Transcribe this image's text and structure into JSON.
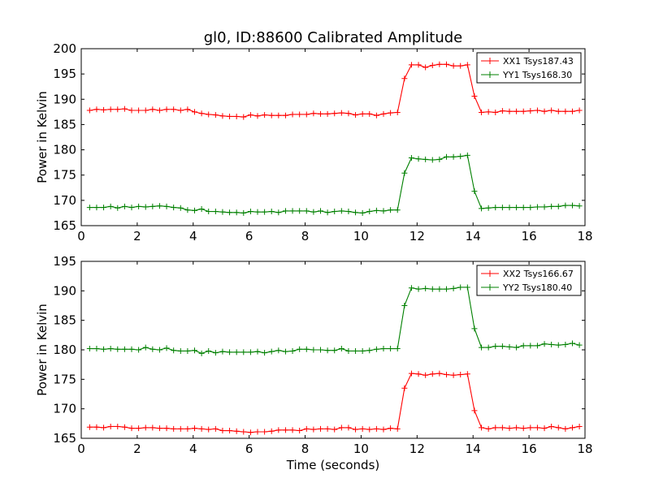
{
  "chart_data": [
    {
      "type": "line",
      "title": "gl0, ID:88600 Calibrated Amplitude",
      "xlabel": "",
      "ylabel": "Power in Kelvin",
      "xlim": [
        0,
        18
      ],
      "ylim": [
        165,
        200
      ],
      "xticks": [
        "0",
        "2",
        "4",
        "6",
        "8",
        "10",
        "12",
        "14",
        "16",
        "18"
      ],
      "yticks": [
        "165",
        "170",
        "175",
        "180",
        "185",
        "190",
        "195",
        "200"
      ],
      "legend_position": "top-right",
      "grid": false,
      "series": [
        {
          "name": "XX1 Tsys187.43",
          "color": "#ff0000",
          "marker": "+",
          "x": [
            0.3,
            0.55,
            0.8,
            1.05,
            1.3,
            1.55,
            1.8,
            2.05,
            2.3,
            2.55,
            2.8,
            3.05,
            3.3,
            3.55,
            3.8,
            4.05,
            4.3,
            4.55,
            4.8,
            5.05,
            5.3,
            5.55,
            5.8,
            6.05,
            6.3,
            6.55,
            6.8,
            7.05,
            7.3,
            7.55,
            7.8,
            8.05,
            8.3,
            8.55,
            8.8,
            9.05,
            9.3,
            9.55,
            9.8,
            10.05,
            10.3,
            10.55,
            10.8,
            11.05,
            11.3,
            11.55,
            11.8,
            12.05,
            12.3,
            12.55,
            12.8,
            13.05,
            13.3,
            13.55,
            13.8,
            14.05,
            14.3,
            14.55,
            14.8,
            15.05,
            15.3,
            15.55,
            15.8,
            16.05,
            16.3,
            16.55,
            16.8,
            17.05,
            17.3,
            17.55,
            17.8
          ],
          "y": [
            187.8,
            188.0,
            187.9,
            188.0,
            188.0,
            188.1,
            187.8,
            187.8,
            187.8,
            188.0,
            187.8,
            188.0,
            188.0,
            187.8,
            188.0,
            187.5,
            187.2,
            187.0,
            186.9,
            186.7,
            186.6,
            186.6,
            186.5,
            186.9,
            186.7,
            186.9,
            186.8,
            186.8,
            186.8,
            187.0,
            187.0,
            187.0,
            187.2,
            187.1,
            187.1,
            187.2,
            187.3,
            187.2,
            186.9,
            187.1,
            187.1,
            186.8,
            187.1,
            187.3,
            187.4,
            194.1,
            196.8,
            196.8,
            196.3,
            196.7,
            196.9,
            196.9,
            196.6,
            196.6,
            196.8,
            190.6,
            187.4,
            187.5,
            187.4,
            187.7,
            187.6,
            187.6,
            187.6,
            187.7,
            187.8,
            187.6,
            187.8,
            187.6,
            187.6,
            187.6,
            187.8
          ]
        },
        {
          "name": "YY1 Tsys168.30",
          "color": "#008000",
          "marker": "+",
          "x": [
            0.3,
            0.55,
            0.8,
            1.05,
            1.3,
            1.55,
            1.8,
            2.05,
            2.3,
            2.55,
            2.8,
            3.05,
            3.3,
            3.55,
            3.8,
            4.05,
            4.3,
            4.55,
            4.8,
            5.05,
            5.3,
            5.55,
            5.8,
            6.05,
            6.3,
            6.55,
            6.8,
            7.05,
            7.3,
            7.55,
            7.8,
            8.05,
            8.3,
            8.55,
            8.8,
            9.05,
            9.3,
            9.55,
            9.8,
            10.05,
            10.3,
            10.55,
            10.8,
            11.05,
            11.3,
            11.55,
            11.8,
            12.05,
            12.3,
            12.55,
            12.8,
            13.05,
            13.3,
            13.55,
            13.8,
            14.05,
            14.3,
            14.55,
            14.8,
            15.05,
            15.3,
            15.55,
            15.8,
            16.05,
            16.3,
            16.55,
            16.8,
            17.05,
            17.3,
            17.55,
            17.8
          ],
          "y": [
            168.6,
            168.6,
            168.6,
            168.8,
            168.5,
            168.8,
            168.6,
            168.8,
            168.7,
            168.8,
            168.9,
            168.8,
            168.6,
            168.5,
            168.1,
            168.0,
            168.3,
            167.8,
            167.8,
            167.7,
            167.6,
            167.6,
            167.5,
            167.8,
            167.7,
            167.7,
            167.8,
            167.6,
            167.9,
            167.9,
            167.9,
            167.9,
            167.7,
            167.9,
            167.6,
            167.8,
            167.9,
            167.8,
            167.6,
            167.5,
            167.8,
            168.0,
            167.9,
            168.1,
            168.1,
            175.4,
            178.4,
            178.2,
            178.1,
            178.0,
            178.1,
            178.6,
            178.6,
            178.7,
            178.9,
            171.8,
            168.4,
            168.5,
            168.6,
            168.6,
            168.6,
            168.6,
            168.6,
            168.6,
            168.7,
            168.7,
            168.8,
            168.8,
            169.0,
            169.0,
            168.9
          ]
        }
      ]
    },
    {
      "type": "line",
      "title": "",
      "xlabel": "Time (seconds)",
      "ylabel": "Power in Kelvin",
      "xlim": [
        0,
        18
      ],
      "ylim": [
        165,
        195
      ],
      "xticks": [
        "0",
        "2",
        "4",
        "6",
        "8",
        "10",
        "12",
        "14",
        "16",
        "18"
      ],
      "yticks": [
        "165",
        "170",
        "175",
        "180",
        "185",
        "190",
        "195"
      ],
      "legend_position": "top-right",
      "grid": false,
      "series": [
        {
          "name": "XX2 Tsys166.67",
          "color": "#ff0000",
          "marker": "+",
          "x": [
            0.3,
            0.55,
            0.8,
            1.05,
            1.3,
            1.55,
            1.8,
            2.05,
            2.3,
            2.55,
            2.8,
            3.05,
            3.3,
            3.55,
            3.8,
            4.05,
            4.3,
            4.55,
            4.8,
            5.05,
            5.3,
            5.55,
            5.8,
            6.05,
            6.3,
            6.55,
            6.8,
            7.05,
            7.3,
            7.55,
            7.8,
            8.05,
            8.3,
            8.55,
            8.8,
            9.05,
            9.3,
            9.55,
            9.8,
            10.05,
            10.3,
            10.55,
            10.8,
            11.05,
            11.3,
            11.55,
            11.8,
            12.05,
            12.3,
            12.55,
            12.8,
            13.05,
            13.3,
            13.55,
            13.8,
            14.05,
            14.3,
            14.55,
            14.8,
            15.05,
            15.3,
            15.55,
            15.8,
            16.05,
            16.3,
            16.55,
            16.8,
            17.05,
            17.3,
            17.55,
            17.8
          ],
          "y": [
            166.9,
            166.9,
            166.8,
            167.0,
            167.0,
            166.9,
            166.7,
            166.7,
            166.8,
            166.8,
            166.7,
            166.7,
            166.6,
            166.6,
            166.6,
            166.7,
            166.6,
            166.5,
            166.6,
            166.3,
            166.3,
            166.2,
            166.1,
            166.0,
            166.1,
            166.1,
            166.2,
            166.4,
            166.4,
            166.4,
            166.3,
            166.6,
            166.5,
            166.6,
            166.6,
            166.5,
            166.8,
            166.8,
            166.5,
            166.6,
            166.5,
            166.6,
            166.5,
            166.7,
            166.6,
            173.5,
            176.0,
            175.9,
            175.7,
            175.9,
            176.0,
            175.8,
            175.7,
            175.8,
            175.9,
            169.7,
            166.8,
            166.6,
            166.8,
            166.8,
            166.7,
            166.8,
            166.7,
            166.8,
            166.8,
            166.7,
            167.0,
            166.8,
            166.6,
            166.8,
            167.0
          ]
        },
        {
          "name": "YY2 Tsys180.40",
          "color": "#008000",
          "marker": "+",
          "x": [
            0.3,
            0.55,
            0.8,
            1.05,
            1.3,
            1.55,
            1.8,
            2.05,
            2.3,
            2.55,
            2.8,
            3.05,
            3.3,
            3.55,
            3.8,
            4.05,
            4.3,
            4.55,
            4.8,
            5.05,
            5.3,
            5.55,
            5.8,
            6.05,
            6.3,
            6.55,
            6.8,
            7.05,
            7.3,
            7.55,
            7.8,
            8.05,
            8.3,
            8.55,
            8.8,
            9.05,
            9.3,
            9.55,
            9.8,
            10.05,
            10.3,
            10.55,
            10.8,
            11.05,
            11.3,
            11.55,
            11.8,
            12.05,
            12.3,
            12.55,
            12.8,
            13.05,
            13.3,
            13.55,
            13.8,
            14.05,
            14.3,
            14.55,
            14.8,
            15.05,
            15.3,
            15.55,
            15.8,
            16.05,
            16.3,
            16.55,
            16.8,
            17.05,
            17.3,
            17.55,
            17.8
          ],
          "y": [
            180.2,
            180.2,
            180.1,
            180.2,
            180.1,
            180.1,
            180.1,
            180.0,
            180.4,
            180.1,
            180.0,
            180.3,
            179.9,
            179.8,
            179.8,
            179.9,
            179.4,
            179.8,
            179.5,
            179.7,
            179.6,
            179.6,
            179.6,
            179.6,
            179.7,
            179.5,
            179.7,
            179.9,
            179.7,
            179.8,
            180.1,
            180.1,
            180.0,
            180.0,
            179.9,
            179.9,
            180.2,
            179.8,
            179.8,
            179.8,
            179.9,
            180.1,
            180.2,
            180.2,
            180.2,
            187.5,
            190.5,
            190.3,
            190.4,
            190.3,
            190.3,
            190.3,
            190.4,
            190.6,
            190.6,
            183.6,
            180.4,
            180.4,
            180.6,
            180.6,
            180.5,
            180.4,
            180.7,
            180.7,
            180.7,
            181.0,
            180.9,
            180.8,
            180.9,
            181.1,
            180.8
          ]
        }
      ]
    }
  ]
}
